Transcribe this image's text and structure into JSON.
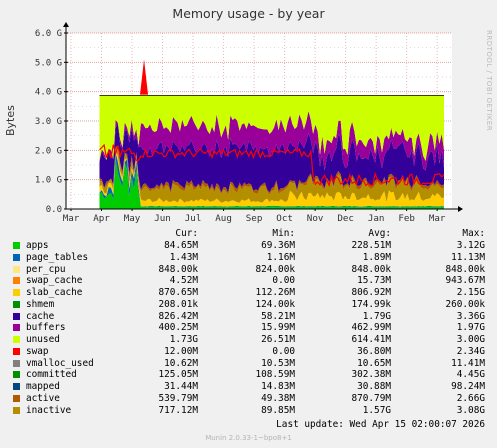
{
  "title": "Memory usage - by year",
  "watermark": "RRDTOOL / TOBI OETIKER",
  "footer": "Munin 2.0.33-1~bpo8+1",
  "last_update": "Last update: Wed Apr 15 02:00:07 2026",
  "legend_headers": {
    "cur": "Cur:",
    "min": "Min:",
    "avg": "Avg:",
    "max": "Max:"
  },
  "chart_data": {
    "type": "area",
    "title": "Memory usage - by year",
    "ylabel": "Bytes",
    "xlabel": "",
    "ylim": [
      0,
      6.0
    ],
    "y_unit": "G",
    "y_ticks": [
      "0.0",
      "1.0 G",
      "2.0 G",
      "3.0 G",
      "4.0 G",
      "5.0 G",
      "6.0 G"
    ],
    "x_ticks": [
      "Mar",
      "Apr",
      "May",
      "Jun",
      "Jul",
      "Aug",
      "Sep",
      "Oct",
      "Nov",
      "Dec",
      "Jan",
      "Feb",
      "Mar"
    ],
    "grid": true,
    "data_starts_at": "Apr",
    "approx_total": 3.87,
    "series": [
      {
        "name": "apps",
        "color": "#00cc00",
        "cur": "84.65M",
        "min": "69.36M",
        "avg": "228.51M",
        "max": "3.12G"
      },
      {
        "name": "page_tables",
        "color": "#0066b3",
        "cur": "1.43M",
        "min": "1.16M",
        "avg": "1.89M",
        "max": "11.13M"
      },
      {
        "name": "per_cpu",
        "color": "#ffcc00",
        "cur": "848.00k",
        "min": "824.00k",
        "avg": "848.00k",
        "max": "848.00k"
      },
      {
        "name": "swap_cache",
        "color": "#ff8000",
        "cur": "4.52M",
        "min": "0.00",
        "avg": "15.73M",
        "max": "943.67M"
      },
      {
        "name": "slab_cache",
        "color": "#ffcc00",
        "cur": "870.65M",
        "min": "112.26M",
        "avg": "806.92M",
        "max": "2.15G"
      },
      {
        "name": "shmem",
        "color": "#008f00",
        "cur": "208.01k",
        "min": "124.00k",
        "avg": "174.99k",
        "max": "260.00k"
      },
      {
        "name": "cache",
        "color": "#330099",
        "cur": "826.42M",
        "min": "58.21M",
        "avg": "1.79G",
        "max": "3.36G"
      },
      {
        "name": "buffers",
        "color": "#990099",
        "cur": "400.25M",
        "min": "15.99M",
        "avg": "462.99M",
        "max": "1.97G"
      },
      {
        "name": "unused",
        "color": "#ccff00",
        "cur": "1.73G",
        "min": "26.51M",
        "avg": "614.41M",
        "max": "3.00G"
      },
      {
        "name": "swap",
        "color": "#ff0000",
        "cur": "12.00M",
        "min": "0.00",
        "avg": "36.80M",
        "max": "2.34G"
      },
      {
        "name": "vmalloc_used",
        "color": "#808080",
        "cur": "10.62M",
        "min": "10.53M",
        "avg": "10.65M",
        "max": "11.41M"
      },
      {
        "name": "committed",
        "color": "#008f00",
        "cur": "125.05M",
        "min": "108.59M",
        "avg": "302.38M",
        "max": "4.45G"
      },
      {
        "name": "mapped",
        "color": "#00487d",
        "cur": "31.44M",
        "min": "14.83M",
        "avg": "30.88M",
        "max": "98.24M"
      },
      {
        "name": "active",
        "color": "#b35a00",
        "cur": "539.79M",
        "min": "49.38M",
        "avg": "870.79M",
        "max": "2.66G"
      },
      {
        "name": "inactive",
        "color": "#b38f00",
        "cur": "717.12M",
        "min": "89.85M",
        "avg": "1.57G",
        "max": "3.08G"
      }
    ],
    "swatch_colors": [
      "#00cc00",
      "#0066b3",
      "#ffe680",
      "#ff8000",
      "#ffcc00",
      "#008f00",
      "#330099",
      "#990099",
      "#ccff00",
      "#ff0000",
      "#808080",
      "#008f00",
      "#00487d",
      "#b35a00",
      "#b38f00"
    ]
  }
}
